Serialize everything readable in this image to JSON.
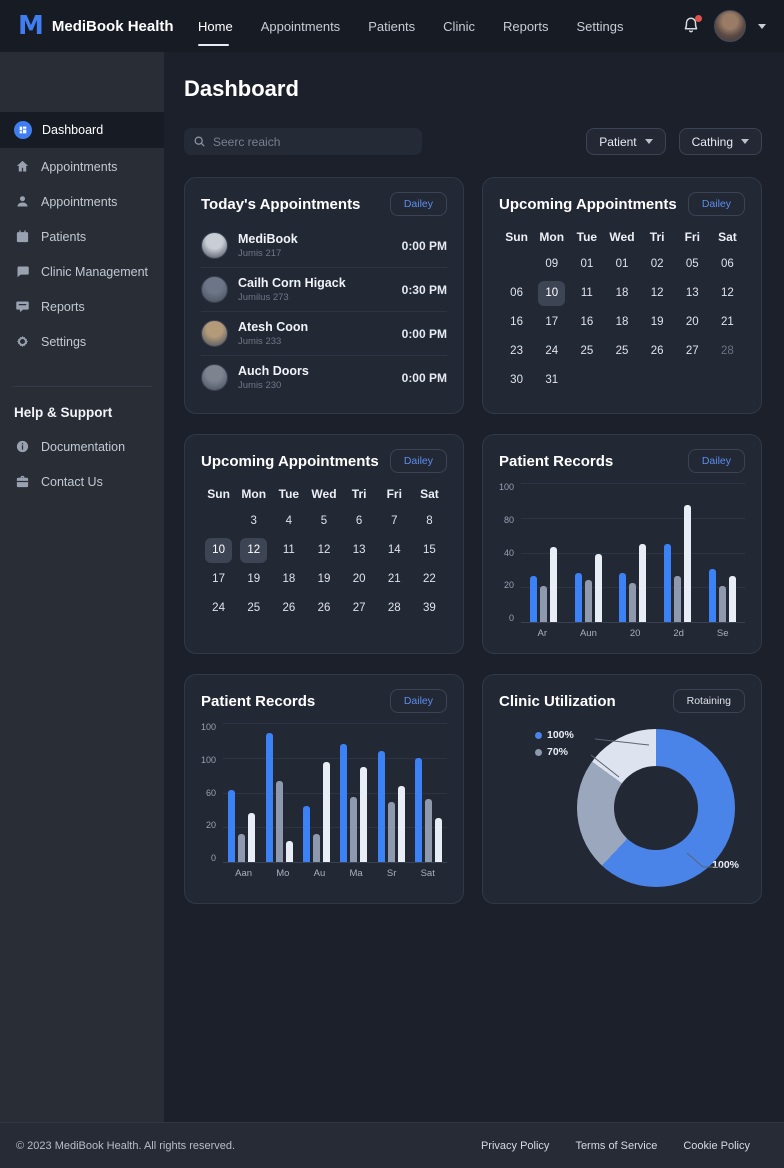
{
  "nav": {
    "brand": "MediBook Health",
    "items": [
      {
        "label": "Home",
        "active": true
      },
      {
        "label": "Appointments",
        "active": false
      },
      {
        "label": "Patients",
        "active": false
      },
      {
        "label": "Clinic",
        "active": false
      },
      {
        "label": "Reports",
        "active": false
      },
      {
        "label": "Settings",
        "active": false
      }
    ]
  },
  "sidebar": {
    "items": [
      {
        "label": "Dashboard",
        "icon": "dashboard-icon",
        "active": true
      },
      {
        "label": "Appointments",
        "icon": "home-icon",
        "active": false
      },
      {
        "label": "Appointments",
        "icon": "person-icon",
        "active": false
      },
      {
        "label": "Patients",
        "icon": "calendar-icon",
        "active": false
      },
      {
        "label": "Clinic Management",
        "icon": "chat-icon",
        "active": false
      },
      {
        "label": "Reports",
        "icon": "message-icon",
        "active": false
      },
      {
        "label": "Settings",
        "icon": "gear-icon",
        "active": false
      }
    ],
    "support_heading": "Help & Support",
    "support_items": [
      {
        "label": "Documentation",
        "icon": "info-icon"
      },
      {
        "label": "Contact Us",
        "icon": "briefcase-icon"
      }
    ]
  },
  "header": {
    "title": "Dashboard",
    "search_placeholder": "Seerc reaich",
    "filters": [
      {
        "label": "Patient"
      },
      {
        "label": "Cathing"
      }
    ]
  },
  "today_card": {
    "title": "Today's Appointments",
    "action": "Dailey",
    "rows": [
      {
        "name": "MediBook",
        "sub": "Jumis 217",
        "time": "0:00 PM",
        "avatar_color": "#c9cdd4"
      },
      {
        "name": "Cailh Corn Higack",
        "sub": "Jumilus 273",
        "time": "0:30 PM",
        "avatar_color": "#6c7686"
      },
      {
        "name": "Atesh Coon",
        "sub": "Jumis 233",
        "time": "0:00 PM",
        "avatar_color": "#b39a78"
      },
      {
        "name": "Auch Doors",
        "sub": "Jumis 230",
        "time": "0:00 PM",
        "avatar_color": "#7d838f"
      }
    ]
  },
  "calendar_right": {
    "title": "Upcoming Appointments",
    "action": "Dailey",
    "day_headers": [
      "Sun",
      "Mon",
      "Tue",
      "Wed",
      "Tri",
      "Fri",
      "Sat"
    ],
    "weeks": [
      [
        "",
        "09",
        "01",
        "01",
        "02",
        "05",
        "06"
      ],
      [
        "06",
        "10",
        "11",
        "18",
        "12",
        "13",
        "12"
      ],
      [
        "16",
        "17",
        "16",
        "18",
        "19",
        "20",
        "21"
      ],
      [
        "23",
        "24",
        "25",
        "25",
        "26",
        "27",
        "28"
      ],
      [
        "30",
        "31",
        "",
        "",
        "",
        "",
        ""
      ]
    ],
    "highlights": [
      [
        1,
        1
      ]
    ],
    "dimmed": [
      [
        3,
        6
      ]
    ]
  },
  "calendar_left": {
    "title": "Upcoming Appointments",
    "action": "Dailey",
    "day_headers": [
      "Sun",
      "Mon",
      "Tue",
      "Wed",
      "Tri",
      "Fri",
      "Sat"
    ],
    "weeks": [
      [
        "",
        "3",
        "4",
        "5",
        "6",
        "7",
        "8"
      ],
      [
        "10",
        "12",
        "11",
        "12",
        "13",
        "14",
        "15"
      ],
      [
        "17",
        "19",
        "18",
        "19",
        "20",
        "21",
        "22"
      ],
      [
        "24",
        "25",
        "26",
        "26",
        "27",
        "28",
        "39"
      ]
    ],
    "highlights": [
      [
        1,
        0
      ],
      [
        1,
        1
      ]
    ],
    "dimmed": []
  },
  "chart_data": [
    {
      "id": "patient-records-right",
      "type": "bar",
      "title": "Patient Records",
      "action": "Dailey",
      "categories": [
        "Ar",
        "Aun",
        "20",
        "2d",
        "Se"
      ],
      "series": [
        {
          "name": "blue",
          "color": "#3b82f6",
          "values": [
            33,
            35,
            35,
            56,
            38
          ]
        },
        {
          "name": "gray",
          "color": "#8f99ad",
          "values": [
            26,
            30,
            28,
            33,
            26
          ]
        },
        {
          "name": "white",
          "color": "#e8edf6",
          "values": [
            54,
            49,
            56,
            84,
            33
          ]
        }
      ],
      "ytick_labels": [
        "100",
        "80",
        "40",
        "20",
        "0"
      ],
      "ylim": [
        0,
        100
      ],
      "grid": true,
      "legend": "none"
    },
    {
      "id": "patient-records-left",
      "type": "bar",
      "title": "Patient Records",
      "action": "Dailey",
      "categories": [
        "Aan",
        "Mo",
        "Au",
        "Ma",
        "Sr",
        "Sat"
      ],
      "series": [
        {
          "name": "blue",
          "color": "#3b82f6",
          "values": [
            52,
            93,
            40,
            85,
            80,
            75
          ]
        },
        {
          "name": "gray",
          "color": "#8f99ad",
          "values": [
            20,
            58,
            20,
            47,
            43,
            45
          ]
        },
        {
          "name": "white",
          "color": "#e8edf6",
          "values": [
            35,
            15,
            72,
            68,
            55,
            32
          ]
        }
      ],
      "ytick_labels": [
        "100",
        "100",
        "60",
        "20",
        "0"
      ],
      "ylim": [
        0,
        100
      ],
      "grid": true,
      "legend": "none"
    },
    {
      "id": "clinic-utilization",
      "type": "pie",
      "title": "Clinic Utilization",
      "action": "Rotaining",
      "slices": [
        {
          "label": "100%",
          "value": 62,
          "color": "#4a84e8"
        },
        {
          "label": "70%",
          "value": 23,
          "color": "#9aa7bd"
        },
        {
          "label": "",
          "value": 15,
          "color": "#dde4f0"
        }
      ],
      "legend_position": "top-left",
      "legend": [
        {
          "label": "100%",
          "color": "#4a84e8"
        },
        {
          "label": "70%",
          "color": "#8e99ad"
        }
      ],
      "callout_label": "100%"
    }
  ],
  "footer": {
    "copyright": "© 2023 MediBook Health. All rights reserved.",
    "links": [
      "Privacy Policy",
      "Terms of Service",
      "Cookie Policy"
    ]
  },
  "colors": {
    "accent_blue": "#3f7df0",
    "bar_blue": "#3b82f6",
    "bar_gray": "#8f99ad",
    "bar_white": "#e8edf6",
    "notification_red": "#e0524e",
    "calendar_highlight": "#3d4555"
  }
}
